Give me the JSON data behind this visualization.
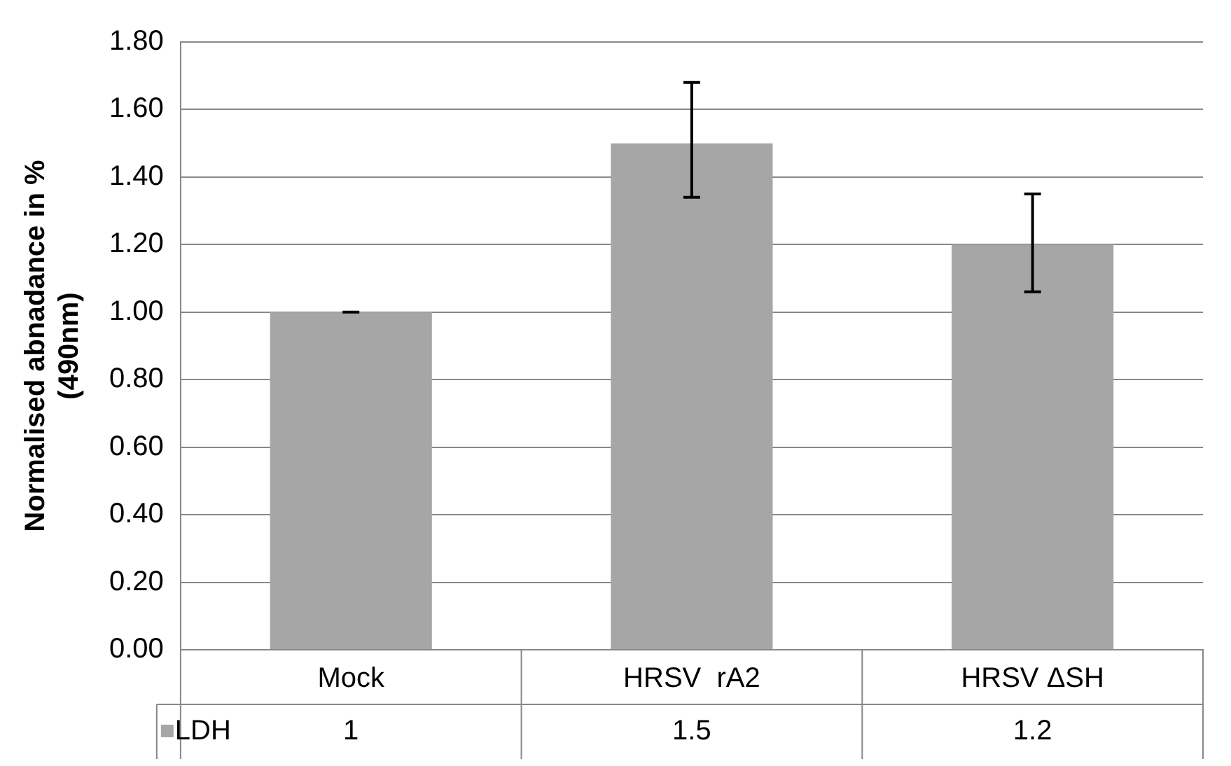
{
  "chart_data": {
    "type": "bar",
    "ylabel": "Normalised abnadance in %\n(490nm)",
    "categories": [
      "Mock",
      "HRSV  rA2",
      "HRSV ΔSH"
    ],
    "series": [
      {
        "name": "LDH",
        "color": "#a6a6a6",
        "values": [
          1,
          1.5,
          1.2
        ],
        "errors": [
          [
            1,
            1
          ],
          [
            1.34,
            1.68
          ],
          [
            1.06,
            1.35
          ]
        ]
      }
    ],
    "ylim": [
      0,
      1.8
    ],
    "yticks": [
      {
        "value": 0,
        "label": "0.00"
      },
      {
        "value": 0.2,
        "label": "0.20"
      },
      {
        "value": 0.4,
        "label": "0.40"
      },
      {
        "value": 0.6,
        "label": "0.60"
      },
      {
        "value": 0.8,
        "label": "0.80"
      },
      {
        "value": 1,
        "label": "1.00"
      },
      {
        "value": 1.2,
        "label": "1.20"
      },
      {
        "value": 1.4,
        "label": "1.40"
      },
      {
        "value": 1.6,
        "label": "1.60"
      },
      {
        "value": 1.8,
        "label": "1.80"
      }
    ],
    "grid": "y",
    "data_labels": true
  }
}
